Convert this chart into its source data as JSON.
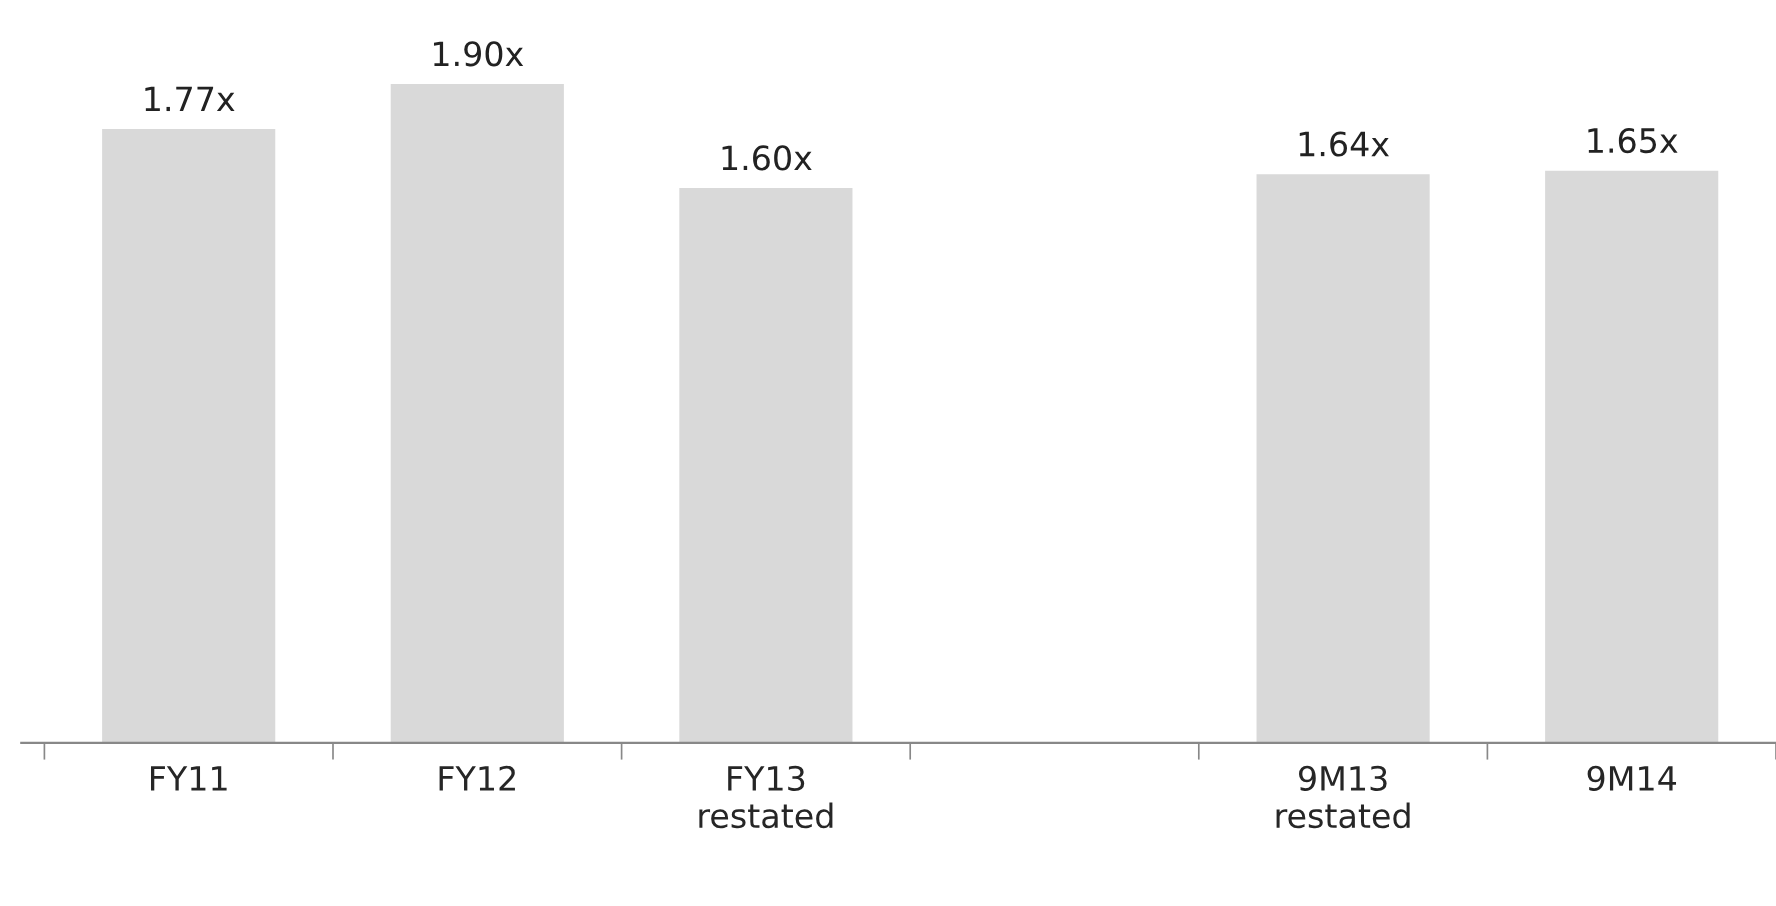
{
  "chart_data": {
    "type": "bar",
    "categories": [
      "FY11",
      "FY12",
      "FY13\nrestated",
      null,
      "9M13\nrestated",
      "9M14"
    ],
    "values": [
      1.77,
      1.9,
      1.6,
      null,
      1.64,
      1.65
    ],
    "value_labels": [
      "1.77x",
      "1.90x",
      "1.60x",
      null,
      "1.64x",
      "1.65x"
    ],
    "color": "#d9d9d9",
    "grid": false,
    "legend": false,
    "tick_labels": "x"
  }
}
